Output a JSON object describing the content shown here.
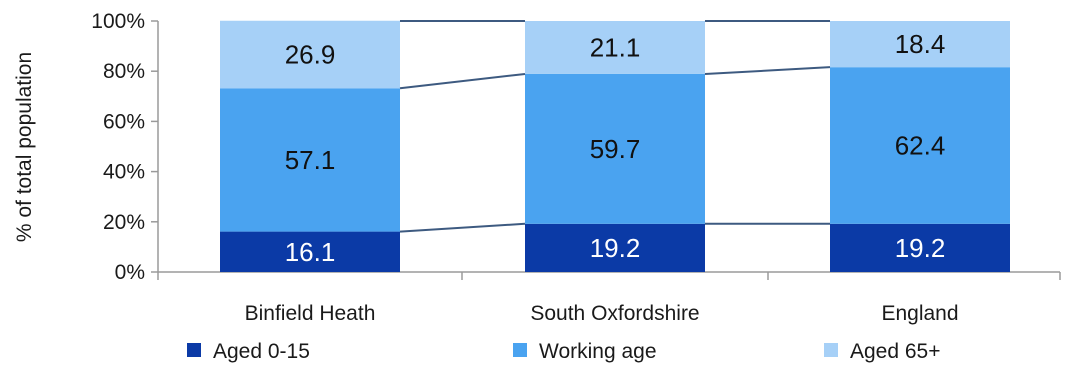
{
  "chart_data": {
    "type": "bar",
    "stacked": true,
    "percent_stacked": true,
    "categories": [
      "Binfield Heath",
      "South Oxfordshire",
      "England"
    ],
    "series": [
      {
        "name": "Aged 0-15",
        "values": [
          16.1,
          19.2,
          19.2
        ],
        "color": "#0b3aa6",
        "label_color": "#ffffff"
      },
      {
        "name": "Working age",
        "values": [
          57.1,
          59.7,
          62.4
        ],
        "color": "#4aa3f0",
        "label_color": "#111111"
      },
      {
        "name": "Aged 65+",
        "values": [
          26.9,
          21.1,
          18.4
        ],
        "color": "#a6d0f7",
        "label_color": "#111111"
      }
    ],
    "ylabel": "% of total population",
    "xlabel": "",
    "ylim": [
      0,
      100
    ],
    "yticks": [
      "0%",
      "20%",
      "40%",
      "60%",
      "80%",
      "100%"
    ],
    "grid": false,
    "connector_lines": true,
    "connector_color": "#3d5a80",
    "legend_position": "bottom"
  }
}
